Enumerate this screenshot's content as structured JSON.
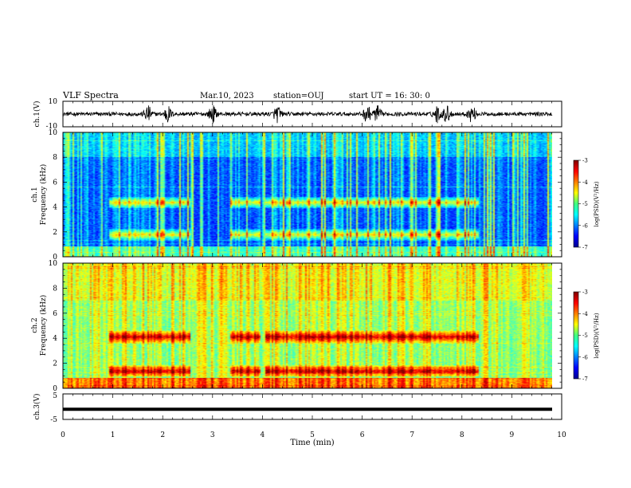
{
  "header": {
    "title": "VLF Spectra",
    "date": "Mar.10, 2023",
    "station": "station=OUJ",
    "start": "start  UT =   16: 30: 0"
  },
  "chart_data": [
    {
      "id": "ch1_waveform",
      "type": "line",
      "ylabel": "ch.1(V)",
      "ylim": [
        -10,
        10
      ],
      "y_tick_labels": [
        "10",
        "-10"
      ],
      "xlim": [
        0,
        10
      ],
      "burst_centers_min": [
        1.7,
        2.1,
        3.0,
        4.3,
        6.1,
        6.3,
        7.5,
        7.7,
        8.2
      ],
      "baseline_amplitude_V": 1.5,
      "burst_amplitude_V": 6
    },
    {
      "id": "ch1_spectrogram",
      "type": "heatmap",
      "ylabel_channel": "ch.1",
      "ylabel": "Frequency (kHz)",
      "ylim": [
        0,
        10
      ],
      "y_ticks": [
        0,
        2,
        4,
        6,
        8,
        10
      ],
      "xlim": [
        0,
        10
      ],
      "colorbar": {
        "label": "log(PSD)(V²/Hz)",
        "range": [
          -7,
          -3
        ],
        "ticks": [
          "-3",
          "-4",
          "-5",
          "-6",
          "-7"
        ]
      },
      "emission_bands_kHz": [
        [
          3.9,
          4.8
        ],
        [
          1.3,
          2.2
        ]
      ],
      "emission_active_intervals_min": [
        [
          0.9,
          2.55
        ],
        [
          3.35,
          3.95
        ],
        [
          4.05,
          8.35
        ]
      ],
      "noise_level": "low"
    },
    {
      "id": "ch2_spectrogram",
      "type": "heatmap",
      "ylabel_channel": "ch.2",
      "ylabel": "Frequency (kHz)",
      "ylim": [
        0,
        10
      ],
      "y_ticks": [
        0,
        2,
        4,
        6,
        8,
        10
      ],
      "xlim": [
        0,
        10
      ],
      "colorbar": {
        "label": "log(PSD)(V²/Hz)",
        "range": [
          -7,
          -3
        ],
        "ticks": [
          "-3",
          "-4",
          "-5",
          "-6",
          "-7"
        ]
      },
      "emission_bands_kHz": [
        [
          3.6,
          4.6
        ],
        [
          0.9,
          1.8
        ]
      ],
      "emission_active_intervals_min": [
        [
          0.9,
          2.55
        ],
        [
          3.35,
          3.95
        ],
        [
          4.05,
          8.35
        ]
      ],
      "noise_level": "high"
    },
    {
      "id": "ch3_waveform",
      "type": "line",
      "ylabel": "ch.3(V)",
      "ylim": [
        -5,
        5
      ],
      "y_tick_labels": [
        "5",
        "-5"
      ],
      "xlim": [
        0,
        10
      ],
      "level_V": -1
    }
  ],
  "xaxis": {
    "label": "Time (min)",
    "ticks": [
      "0",
      "1",
      "2",
      "3",
      "4",
      "5",
      "6",
      "7",
      "8",
      "9",
      "10"
    ]
  }
}
